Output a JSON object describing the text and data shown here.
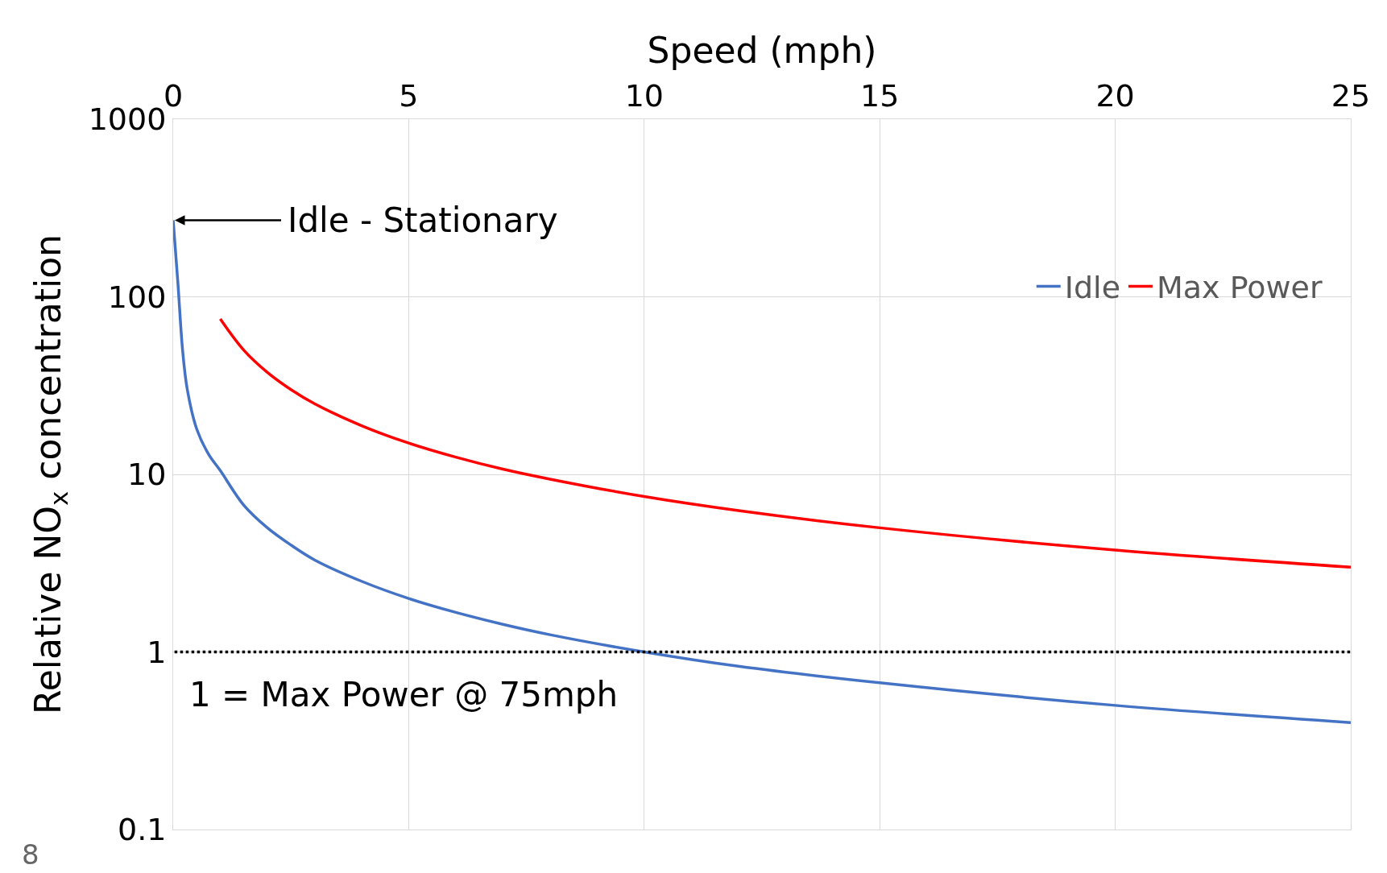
{
  "chart_data": {
    "type": "line",
    "xlabel": "Speed (mph)",
    "ylabel": "Relative NO$_{x}$ concentration",
    "xlim": [
      0,
      25
    ],
    "xticks": [
      0,
      5,
      10,
      15,
      20,
      25
    ],
    "ylim": [
      0.1,
      1000
    ],
    "yticks": [
      0.1,
      1,
      10,
      100,
      1000
    ],
    "log": "y",
    "grid": true,
    "legend": "top right",
    "marker": "none",
    "line_style": "solid",
    "series": [
      {
        "name": "Idle",
        "color": "#4472c4",
        "x": [
          0,
          0.1,
          0.2,
          0.3,
          0.5,
          0.75,
          1,
          1.5,
          2,
          2.5,
          3,
          4,
          5,
          6,
          7,
          8,
          10,
          12,
          15,
          20,
          25
        ],
        "values": [
          270,
          120,
          50,
          30,
          18,
          13,
          10.5,
          6.7,
          5,
          4,
          3.3,
          2.5,
          2,
          1.67,
          1.43,
          1.25,
          1,
          0.83,
          0.67,
          0.5,
          0.4
        ]
      },
      {
        "name": "Max Power",
        "color": "#ff0000",
        "x": [
          1,
          1.5,
          2,
          2.5,
          3,
          4,
          5,
          6,
          7,
          8,
          10,
          12,
          15,
          20,
          25
        ],
        "values": [
          75,
          50,
          37.5,
          30,
          25,
          18.8,
          15,
          12.5,
          10.7,
          9.4,
          7.5,
          6.25,
          5,
          3.75,
          3
        ]
      }
    ],
    "ref_lines": [
      {
        "axis": "y",
        "value": 1,
        "label": "1 = Max Power @ 75mph",
        "color": "#000000",
        "line_style": "dotted"
      }
    ],
    "annotations": [
      {
        "text": "Idle - Stationary",
        "x": 0,
        "y": 270
      },
      "8"
    ]
  }
}
